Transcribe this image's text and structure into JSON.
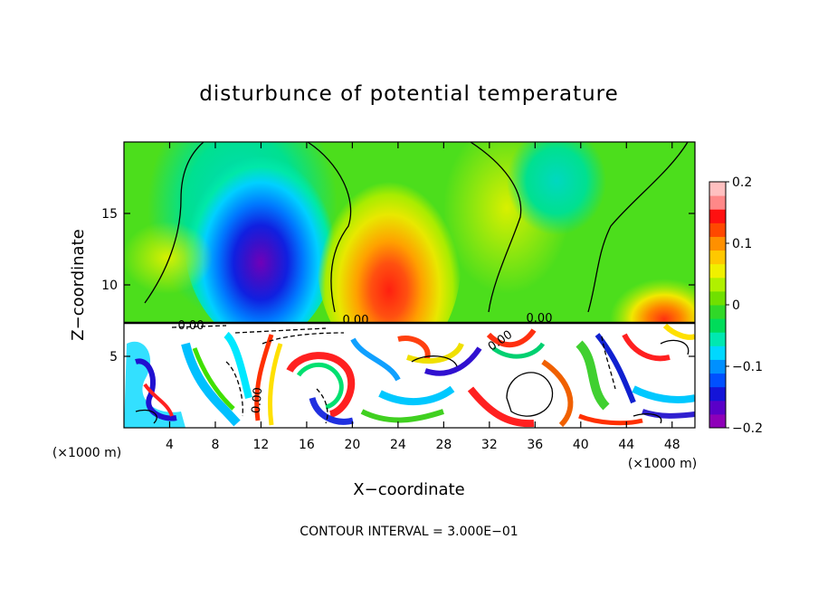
{
  "chart_data": {
    "type": "heatmap",
    "title": "disturbunce of potential temperature",
    "xlabel": "X−coordinate",
    "ylabel": "Z−coordinate",
    "x_unit_left": "(×1000 m)",
    "x_unit_right": "(×1000 m)",
    "xlim": [
      0,
      50
    ],
    "ylim": [
      0,
      20
    ],
    "x_ticks": [
      4,
      8,
      12,
      16,
      20,
      24,
      28,
      32,
      36,
      40,
      44,
      48
    ],
    "y_ticks": [
      5,
      10,
      15
    ],
    "colorbar": {
      "range": [
        -0.2,
        0.2
      ],
      "tick_values": [
        0.2,
        0.1,
        0,
        -0.1,
        -0.2
      ],
      "tick_labels": [
        "0.2",
        "0.1",
        "0",
        "−0.1",
        "−0.2"
      ],
      "colors": [
        "#8e00b8",
        "#5a00c8",
        "#1414d8",
        "#0050ff",
        "#0090ff",
        "#00d8ff",
        "#00e8b0",
        "#00dc5a",
        "#30d828",
        "#70e000",
        "#b0f000",
        "#f0f000",
        "#ffc800",
        "#ff9000",
        "#ff4800",
        "#ff1010",
        "#ff8888",
        "#ffc0c0"
      ]
    },
    "contour_labels": [
      "0.00",
      "0.00",
      "0.00",
      "0.00",
      "0.00"
    ],
    "contour_interval_text": "CONTOUR INTERVAL = 3.000E−01",
    "anomalies": [
      {
        "x": 11.5,
        "z": 11.5,
        "value": -0.2
      },
      {
        "x": 23,
        "z": 11.5,
        "value": 0.13
      },
      {
        "x": 38,
        "z": 15,
        "value": -0.03
      },
      {
        "x": 46.5,
        "z": 10,
        "value": 0.12
      }
    ]
  }
}
